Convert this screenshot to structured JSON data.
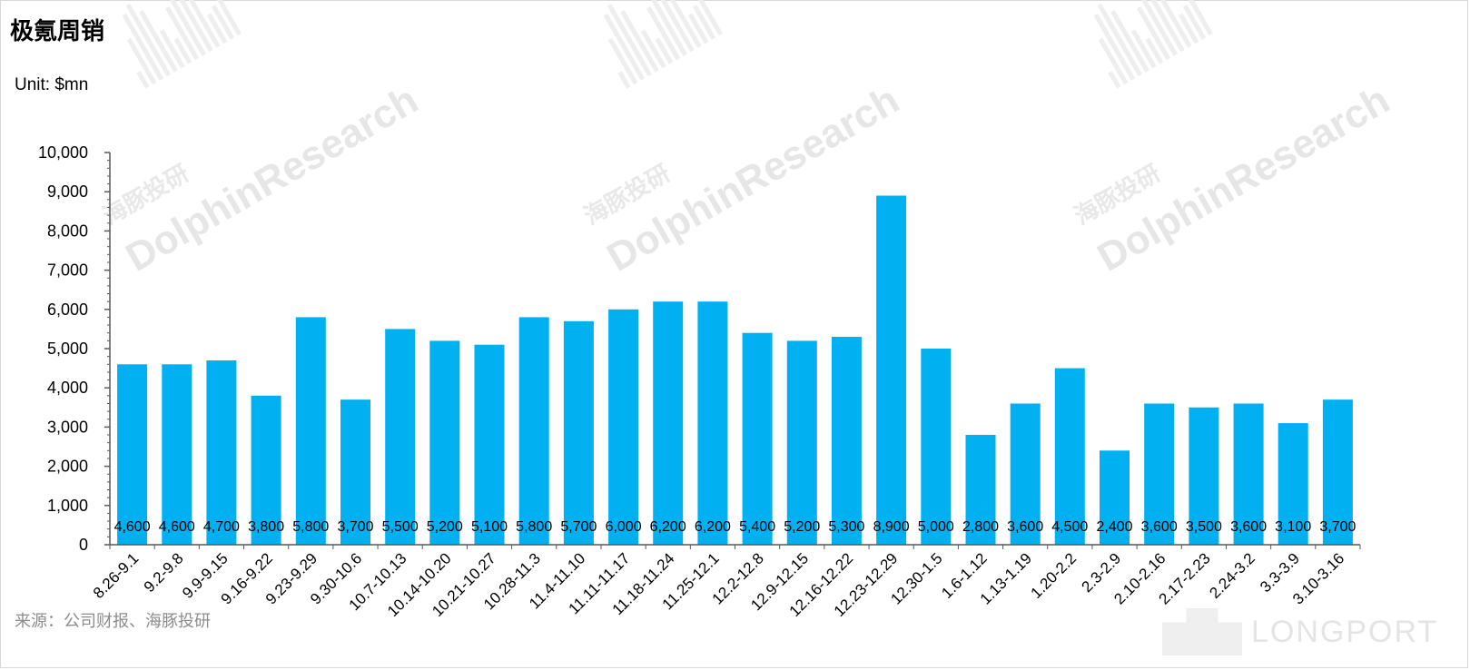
{
  "page": {
    "title": "极氪周销",
    "unit": "Unit: $mn",
    "source": "来源：公司财报、海豚投研"
  },
  "watermark": {
    "text_en": "DolphinResearch",
    "text_cn": "海豚投研",
    "brand": "LONGPORT"
  },
  "colors": {
    "bar": "#00B0F0",
    "axis": "#595959",
    "text": "#000000"
  },
  "chart_data": {
    "type": "bar",
    "title": "极氪周销",
    "ylabel": "Unit: $mn",
    "ylim": [
      0,
      10000
    ],
    "yticks": [
      0,
      1000,
      2000,
      3000,
      4000,
      5000,
      6000,
      7000,
      8000,
      9000,
      10000
    ],
    "ytick_labels": [
      "0",
      "1,000",
      "2,000",
      "3,000",
      "4,000",
      "5,000",
      "6,000",
      "7,000",
      "8,000",
      "9,000",
      "10,000"
    ],
    "grid": false,
    "legend": "none",
    "categories": [
      "8.26-9.1",
      "9.2-9.8",
      "9.9-9.15",
      "9.16-9.22",
      "9.23-9.29",
      "9.30-10.6",
      "10.7-10.13",
      "10.14-10.20",
      "10.21-10.27",
      "10.28-11.3",
      "11.4-11.10",
      "11.11-11.17",
      "11.18-11.24",
      "11.25-12.1",
      "12.2-12.8",
      "12.9-12.15",
      "12.16-12.22",
      "12.23-12.29",
      "12.30-1.5",
      "1.6-1.12",
      "1.13-1.19",
      "1.20-2.2",
      "2.3-2.9",
      "2.10-2.16",
      "2.17-2.23",
      "2.24-3.2",
      "3.3-3.9",
      "3.10-3.16"
    ],
    "values": [
      4600,
      4600,
      4700,
      3800,
      5800,
      3700,
      5500,
      5200,
      5100,
      5800,
      5700,
      6000,
      6200,
      6200,
      5400,
      5200,
      5300,
      8900,
      5000,
      2800,
      3600,
      4500,
      2400,
      3600,
      3500,
      3600,
      3100,
      3700
    ],
    "value_labels": [
      "4,600",
      "4,600",
      "4,700",
      "3,800",
      "5,800",
      "3,700",
      "5,500",
      "5,200",
      "5,100",
      "5,800",
      "5,700",
      "6,000",
      "6,200",
      "6,200",
      "5,400",
      "5,200",
      "5,300",
      "8,900",
      "5,000",
      "2,800",
      "3,600",
      "4,500",
      "2,400",
      "3,600",
      "3,500",
      "3,600",
      "3,100",
      "3,700"
    ]
  }
}
